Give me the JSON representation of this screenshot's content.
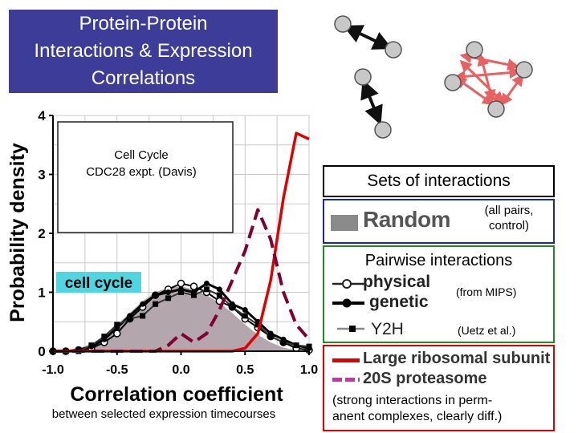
{
  "title": {
    "line1": "Protein-Protein",
    "line2": "Interactions & Expression",
    "line3": "Correlations"
  },
  "caption": "between selected expression timecourses",
  "legend": {
    "sets_title": "Sets of interactions",
    "random_label": "Random",
    "random_note_1": "(all pairs,",
    "random_note_2": "control)",
    "pairwise_title": "Pairwise interactions",
    "physical_label": "physical",
    "genetic_label": "genetic",
    "mips_note": "(from MIPS)",
    "y2h_label": "Y2H",
    "uetz_note": "(Uetz et al.)",
    "ribosomal_label": "Large ribosomal subunit",
    "proteasome_label": "20S proteasome",
    "complex_note_1": "(strong interactions in perm-",
    "complex_note_2": "anent complexes, clearly diff.)"
  },
  "colors": {
    "title_bg": "#3d3d99",
    "random_fill": "#b3a6ad",
    "ribosomal": "#e00000",
    "proteasome": "#800030",
    "cell_cycle_tag": "#4fd6e0",
    "pairwise_border": "#1f8a1f",
    "complex_border": "#e00000",
    "random_border": "#1f2a80"
  },
  "chart_data": {
    "type": "line",
    "xlabel": "Correlation coefficient",
    "ylabel": "Probability density",
    "xlim": [
      -1.0,
      1.0
    ],
    "ylim": [
      0,
      4
    ],
    "xticks": [
      "-1.0",
      "-0.5",
      "0.0",
      "0.5",
      "1.0"
    ],
    "yticks": [
      "0",
      "1",
      "2",
      "3",
      "4"
    ],
    "grid": true,
    "inset_label_1": "Cell Cycle",
    "inset_label_2": "CDC28 expt. (Davis)",
    "tag": "cell cycle",
    "x": [
      -1.0,
      -0.9,
      -0.8,
      -0.7,
      -0.6,
      -0.5,
      -0.4,
      -0.3,
      -0.2,
      -0.1,
      0.0,
      0.1,
      0.2,
      0.3,
      0.4,
      0.5,
      0.6,
      0.7,
      0.8,
      0.9,
      1.0
    ],
    "series": [
      {
        "name": "Random",
        "style": "area",
        "values": [
          0.0,
          0.02,
          0.05,
          0.12,
          0.25,
          0.45,
          0.65,
          0.85,
          1.0,
          1.08,
          1.1,
          1.05,
          0.95,
          0.82,
          0.65,
          0.45,
          0.28,
          0.15,
          0.06,
          0.02,
          0.0
        ]
      },
      {
        "name": "physical",
        "style": "open-circle",
        "values": [
          0.0,
          0.0,
          0.02,
          0.05,
          0.15,
          0.3,
          0.55,
          0.75,
          0.95,
          1.05,
          1.15,
          1.1,
          1.0,
          0.85,
          0.75,
          0.55,
          0.4,
          0.25,
          0.15,
          0.05,
          0.02
        ]
      },
      {
        "name": "genetic",
        "style": "filled-circle",
        "values": [
          0.0,
          0.0,
          0.02,
          0.08,
          0.2,
          0.4,
          0.6,
          0.8,
          0.95,
          1.0,
          1.05,
          1.0,
          1.15,
          1.05,
          0.8,
          0.7,
          0.5,
          0.3,
          0.2,
          0.1,
          0.05
        ]
      },
      {
        "name": "Y2H",
        "style": "filled-square",
        "values": [
          0.0,
          0.0,
          0.0,
          0.1,
          0.25,
          0.45,
          0.55,
          0.6,
          0.8,
          0.9,
          1.0,
          0.95,
          1.05,
          0.95,
          0.75,
          0.6,
          0.45,
          0.25,
          0.15,
          0.1,
          0.08
        ]
      },
      {
        "name": "Large ribosomal subunit",
        "style": "solid",
        "values": [
          0.0,
          0.0,
          0.0,
          0.0,
          0.0,
          0.0,
          0.0,
          0.0,
          0.0,
          0.0,
          0.0,
          0.0,
          0.0,
          0.0,
          0.0,
          0.05,
          0.3,
          1.2,
          2.6,
          3.7,
          3.6
        ]
      },
      {
        "name": "20S proteasome",
        "style": "dashed",
        "values": [
          0.0,
          0.0,
          0.0,
          0.0,
          0.0,
          0.0,
          0.0,
          0.0,
          0.0,
          0.1,
          0.3,
          0.15,
          0.3,
          0.7,
          1.2,
          1.7,
          2.4,
          1.9,
          1.0,
          0.45,
          0.2
        ]
      }
    ]
  }
}
